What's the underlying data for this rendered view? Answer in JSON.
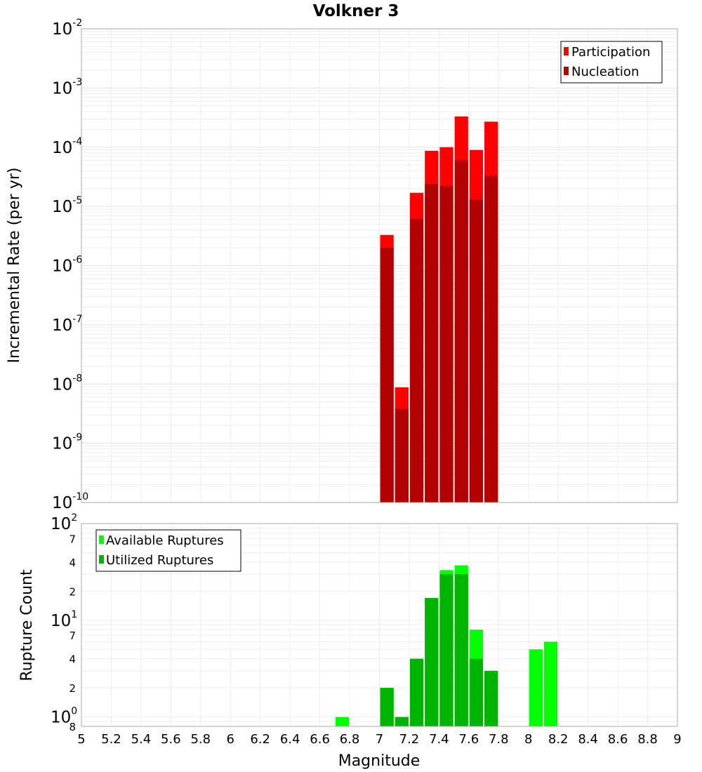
{
  "chart_data": [
    {
      "type": "bar",
      "title": "Volkner 3",
      "xlabel": "",
      "ylabel": "Incremental Rate (per yr)",
      "y_scale": "log",
      "ylim": [
        1e-10,
        0.01
      ],
      "xlim": [
        5,
        9
      ],
      "grid": true,
      "legend": "top-right",
      "bin_centers": [
        7.05,
        7.15,
        7.25,
        7.35,
        7.45,
        7.55,
        7.65,
        7.75
      ],
      "bar_width": 0.1,
      "series": [
        {
          "name": "Participation",
          "color": "#ff0000",
          "values": [
            3.3e-06,
            8.8e-09,
            1.7e-05,
            8.7e-05,
            0.0001,
            0.00033,
            9e-05,
            0.00027
          ]
        },
        {
          "name": "Nucleation",
          "color": "#b30000",
          "values": [
            2e-06,
            3.8e-09,
            6.1e-06,
            2.4e-05,
            2.2e-05,
            6e-05,
            1.3e-05,
            3.3e-05
          ]
        }
      ]
    },
    {
      "type": "bar",
      "title": "",
      "xlabel": "Magnitude",
      "ylabel": "Rupture Count",
      "y_scale": "log",
      "ylim": [
        0.8,
        100
      ],
      "xlim": [
        5,
        9
      ],
      "grid": true,
      "legend": "top-left",
      "x_ticks": [
        "5",
        "5.2",
        "5.4",
        "5.6",
        "5.8",
        "6",
        "6.2",
        "6.4",
        "6.6",
        "6.8",
        "7",
        "7.2",
        "7.4",
        "7.6",
        "7.8",
        "8",
        "8.2",
        "8.4",
        "8.6",
        "8.8",
        "9"
      ],
      "bin_centers": [
        6.75,
        7.05,
        7.15,
        7.25,
        7.35,
        7.45,
        7.55,
        7.65,
        7.75,
        8.05,
        8.15
      ],
      "bar_width": 0.1,
      "series": [
        {
          "name": "Available Ruptures",
          "color": "#00ff00",
          "values": [
            1,
            2,
            1,
            4,
            17,
            33,
            37,
            8,
            3,
            5,
            6
          ]
        },
        {
          "name": "Utilized Ruptures",
          "color": "#00b300",
          "values": [
            0,
            2,
            1,
            4,
            17,
            30,
            30,
            4,
            3,
            0,
            0
          ]
        }
      ]
    }
  ]
}
